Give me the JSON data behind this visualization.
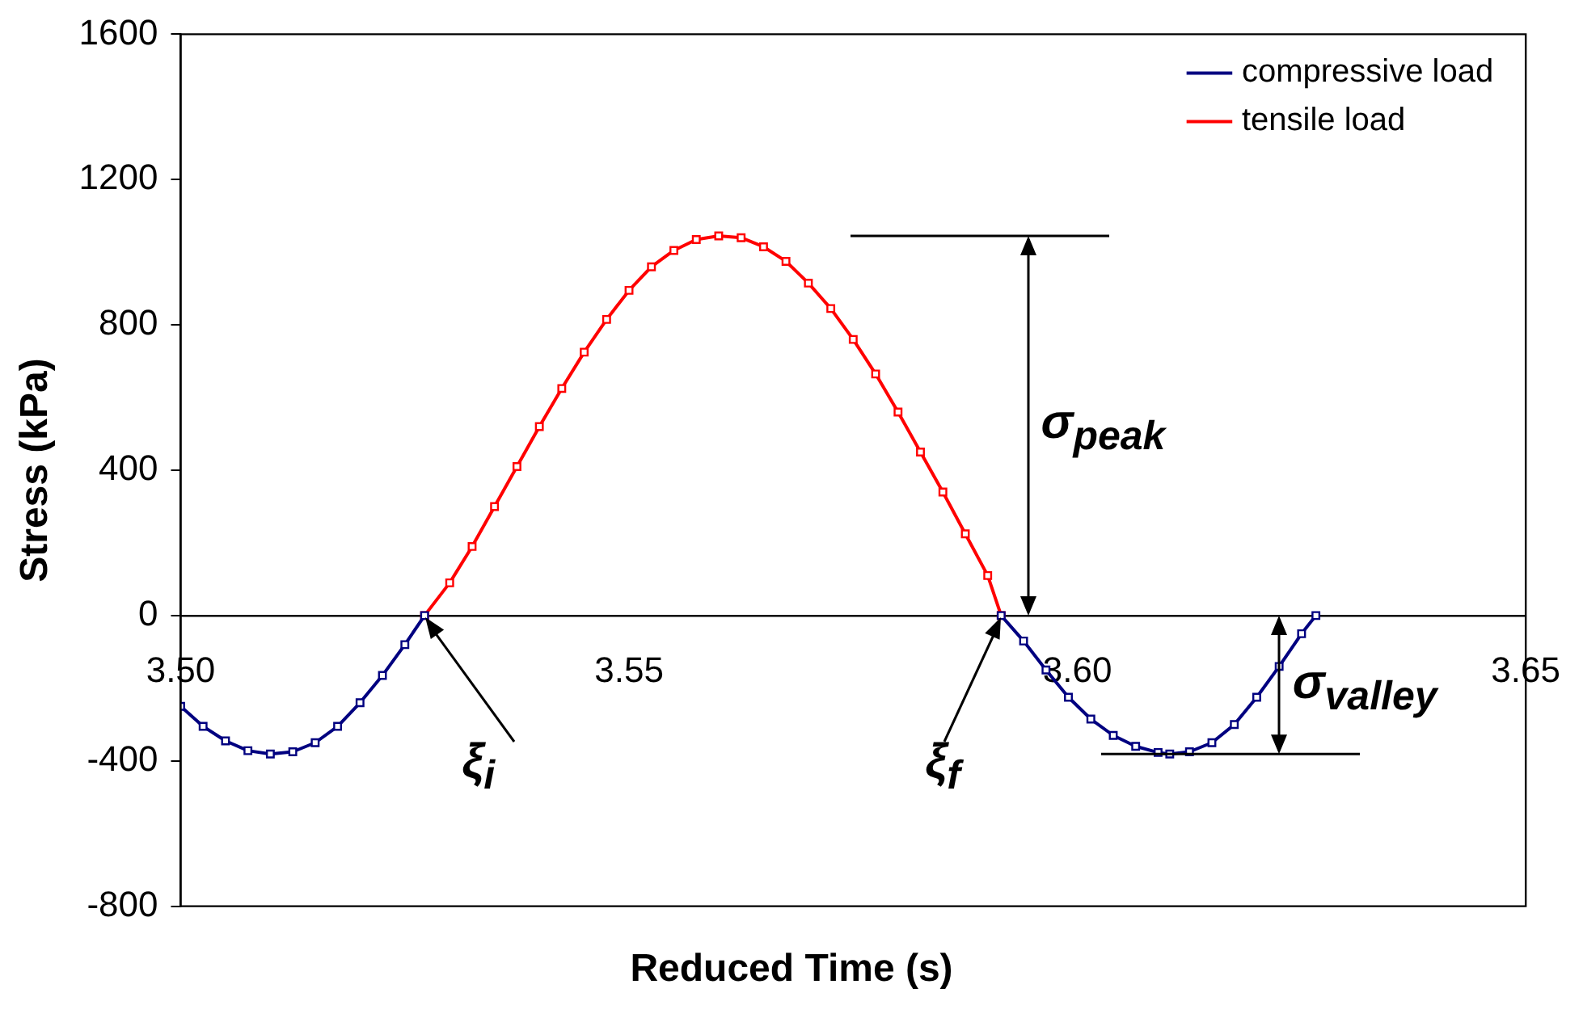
{
  "chart_data": {
    "type": "line",
    "xlabel": "Reduced Time (s)",
    "ylabel": "Stress (kPa)",
    "xlim": [
      3.5,
      3.65
    ],
    "xticks": [
      {
        "value": 3.5,
        "label": "3.50"
      },
      {
        "value": 3.55,
        "label": "3.55"
      },
      {
        "value": 3.6,
        "label": "3.60"
      },
      {
        "value": 3.65,
        "label": "3.65"
      }
    ],
    "ylim": [
      -800,
      1600
    ],
    "yticks": [
      -800,
      -400,
      0,
      400,
      800,
      1200,
      1600
    ],
    "grid": false,
    "legend": "top right",
    "marker": "square",
    "line_style": "solid",
    "series": [
      {
        "name": "compressive load",
        "color": "#000080",
        "x": [
          3.5,
          3.5025,
          3.505,
          3.5075,
          3.51,
          3.5125,
          3.515,
          3.5175,
          3.52,
          3.5225,
          3.525,
          3.5272,
          3.56,
          3.5915,
          3.594,
          3.5965,
          3.599,
          3.6015,
          3.604,
          3.6065,
          3.609,
          3.6103,
          3.6125,
          3.615,
          3.6175,
          3.62,
          3.6225,
          3.625,
          3.6266
        ],
        "values": [
          -250,
          -305,
          -345,
          -372,
          -381,
          -375,
          -350,
          -305,
          -240,
          -165,
          -80,
          0,
          null,
          0,
          -70,
          -150,
          -225,
          -285,
          -330,
          -360,
          -377,
          -381,
          -375,
          -350,
          -300,
          -225,
          -140,
          -50,
          0
        ]
      },
      {
        "name": "tensile load",
        "color": "#ff0000",
        "x": [
          3.5272,
          3.53,
          3.5325,
          3.535,
          3.5375,
          3.54,
          3.5425,
          3.545,
          3.5475,
          3.55,
          3.5525,
          3.555,
          3.5575,
          3.56,
          3.5625,
          3.565,
          3.5675,
          3.57,
          3.5725,
          3.575,
          3.5775,
          3.58,
          3.5825,
          3.585,
          3.5875,
          3.59,
          3.5915
        ],
        "values": [
          0,
          90,
          190,
          300,
          410,
          520,
          625,
          725,
          815,
          895,
          960,
          1005,
          1035,
          1045,
          1040,
          1015,
          975,
          915,
          845,
          760,
          665,
          560,
          450,
          340,
          225,
          110,
          0
        ]
      }
    ],
    "annotations": [
      {
        "text": "ξ$_{i}$",
        "x": 3.5272,
        "y": 0
      },
      {
        "text": "ξ$_{f}$",
        "x": 3.5915,
        "y": 0
      },
      "σ$_{peak}$",
      "σ$_{valley}$"
    ]
  }
}
